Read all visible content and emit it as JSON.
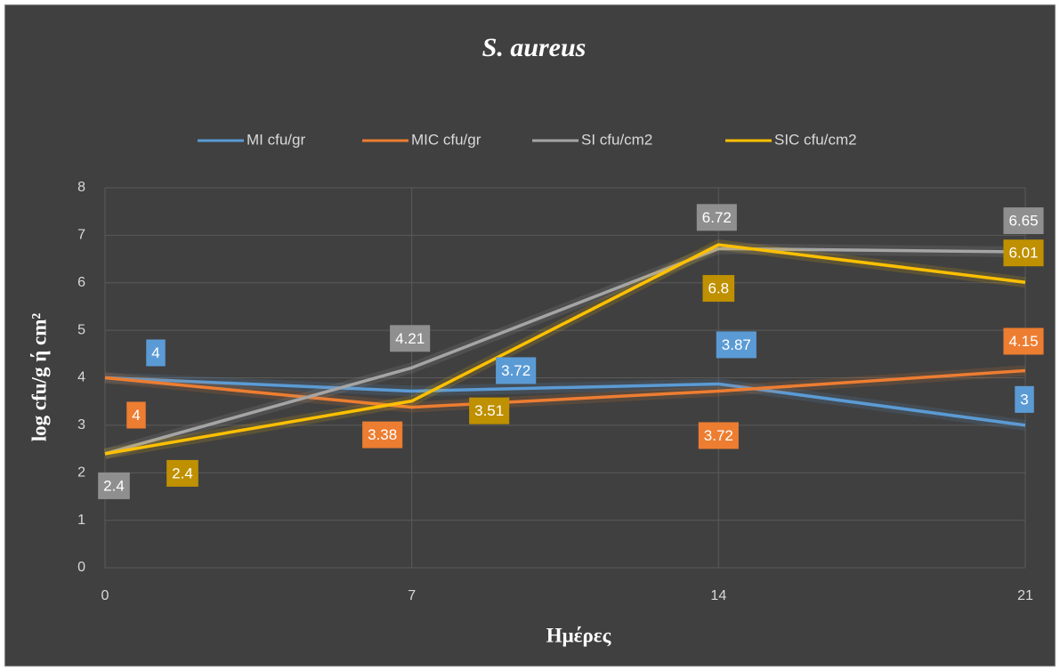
{
  "chart_data": {
    "type": "line",
    "title": "S. aureus",
    "x_label": "Ημέρες",
    "y_label": "log cfu/g ή cm²",
    "x": [
      0,
      7,
      14,
      21
    ],
    "xlim": [
      0,
      21
    ],
    "xticks": [
      0,
      7,
      14,
      21
    ],
    "ylim": [
      0,
      8
    ],
    "yticks": [
      0,
      1,
      2,
      3,
      4,
      5,
      6,
      7,
      8
    ],
    "grid": true,
    "legend": "top",
    "series": [
      {
        "name": "MI cfu/gr",
        "color": "#5b9bd5",
        "label_color": "#5b9bd5",
        "values": [
          4,
          3.72,
          3.87,
          3
        ]
      },
      {
        "name": "MIC cfu/gr",
        "color": "#ed7d31",
        "label_color": "#ed7d31",
        "values": [
          4,
          3.38,
          3.72,
          4.15
        ]
      },
      {
        "name": "SI cfu/cm2",
        "color": "#a5a5a5",
        "label_color": "#8f8f8f",
        "values": [
          2.4,
          4.21,
          6.72,
          6.65
        ]
      },
      {
        "name": "SIC cfu/cm2",
        "color": "#ffc000",
        "label_color": "#bf9000",
        "values": [
          2.4,
          3.51,
          6.8,
          6.01
        ]
      }
    ]
  }
}
